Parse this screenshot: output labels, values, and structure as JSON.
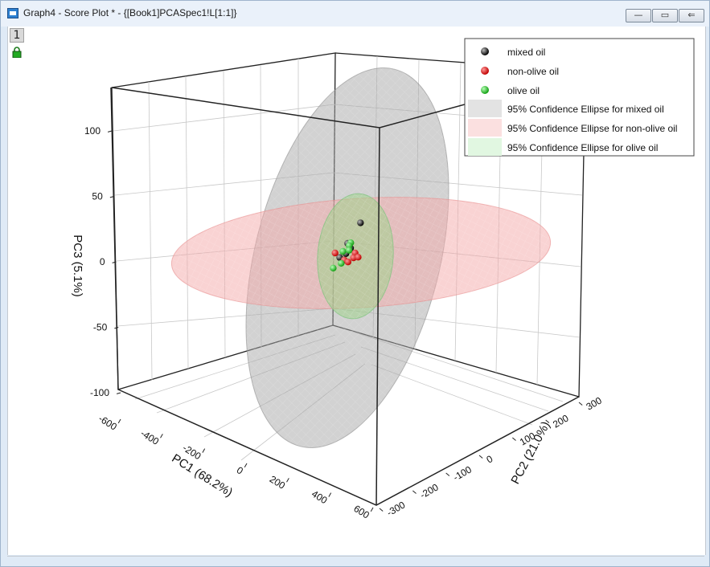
{
  "window": {
    "title": "Graph4 - Score Plot * - {[Book1]PCASpec1!L[1:1]}",
    "layer_label": "1",
    "minimize_label": "—",
    "maximize_label": "▭",
    "restore_label": "⇐"
  },
  "colors": {
    "mixed": "#000000",
    "nonolive": "#e00000",
    "olive": "#22cc22",
    "ellipse_mixed": "#9a9a9a",
    "ellipse_nonolive": "#f4a8a8",
    "ellipse_olive": "#9bd89b"
  },
  "chart_data": {
    "type": "scatter",
    "title": "",
    "xlabel": "PC1 (68.2%)",
    "ylabel": "PC2 (21.0%)",
    "zlabel": "PC3 (5.1%)",
    "xlim": [
      -600,
      600
    ],
    "ylim": [
      -300,
      300
    ],
    "zlim": [
      -100,
      100
    ],
    "xticks": [
      "-600",
      "-400",
      "-200",
      "0",
      "200",
      "400",
      "600"
    ],
    "yticks": [
      "-300",
      "-200",
      "-100",
      "0",
      "100",
      "200",
      "300"
    ],
    "zticks": [
      "-100",
      "-50",
      "0",
      "50",
      "100"
    ],
    "grid": true,
    "legend_position": "top-right",
    "series": [
      {
        "name": "mixed oil",
        "color_key": "mixed",
        "points": [
          {
            "x": 20,
            "y": 30,
            "z": 35
          },
          {
            "x": -40,
            "y": 20,
            "z": 10
          },
          {
            "x": 0,
            "y": 10,
            "z": 8
          },
          {
            "x": -30,
            "y": -10,
            "z": -3
          },
          {
            "x": 20,
            "y": -20,
            "z": -2
          },
          {
            "x": -10,
            "y": 0,
            "z": 2
          }
        ]
      },
      {
        "name": "non-olive oil",
        "color_key": "nonolive",
        "points": [
          {
            "x": -80,
            "y": 0,
            "z": -2
          },
          {
            "x": 30,
            "y": 10,
            "z": 5
          },
          {
            "x": 40,
            "y": 0,
            "z": 1
          },
          {
            "x": 50,
            "y": 10,
            "z": 2
          },
          {
            "x": 20,
            "y": -20,
            "z": -2
          },
          {
            "x": 25,
            "y": -10,
            "z": -4
          }
        ]
      },
      {
        "name": "olive oil",
        "color_key": "olive",
        "points": [
          {
            "x": -20,
            "y": 20,
            "z": 12
          },
          {
            "x": -10,
            "y": 10,
            "z": 10
          },
          {
            "x": -30,
            "y": 0,
            "z": 3
          },
          {
            "x": -50,
            "y": -20,
            "z": -15
          },
          {
            "x": 20,
            "y": -30,
            "z": -5
          },
          {
            "x": 0,
            "y": 5,
            "z": 6
          }
        ]
      }
    ],
    "ellipses": [
      {
        "name": "95% Confidence Ellipse for mixed oil",
        "color_key": "ellipse_mixed"
      },
      {
        "name": "95% Confidence Ellipse for non-olive oil",
        "color_key": "ellipse_nonolive"
      },
      {
        "name": "95% Confidence Ellipse for olive oil",
        "color_key": "ellipse_olive"
      }
    ]
  }
}
